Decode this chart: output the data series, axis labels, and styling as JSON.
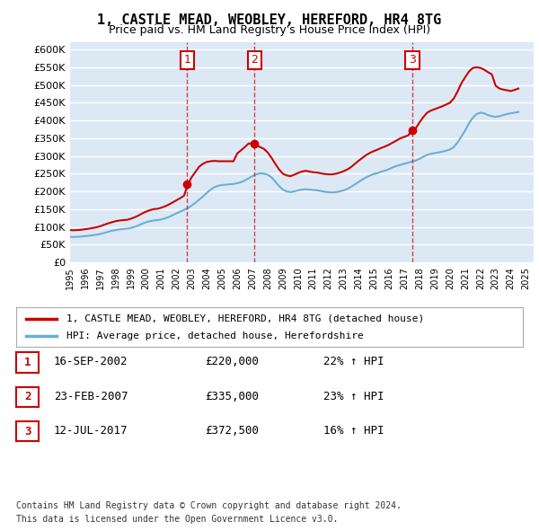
{
  "title": "1, CASTLE MEAD, WEOBLEY, HEREFORD, HR4 8TG",
  "subtitle": "Price paid vs. HM Land Registry's House Price Index (HPI)",
  "ylabel_ticks": [
    "£0",
    "£50K",
    "£100K",
    "£150K",
    "£200K",
    "£250K",
    "£300K",
    "£350K",
    "£400K",
    "£450K",
    "£500K",
    "£550K",
    "£600K"
  ],
  "ytick_values": [
    0,
    50000,
    100000,
    150000,
    200000,
    250000,
    300000,
    350000,
    400000,
    450000,
    500000,
    550000,
    600000
  ],
  "ylim": [
    0,
    620000
  ],
  "xlim_start": 1995.0,
  "xlim_end": 2025.5,
  "sale_dates": [
    2002.71,
    2007.14,
    2017.53
  ],
  "sale_prices": [
    220000,
    335000,
    372500
  ],
  "sale_labels": [
    "1",
    "2",
    "3"
  ],
  "hpi_line_color": "#6baed6",
  "price_line_color": "#cc0000",
  "dashed_line_color": "#cc0000",
  "background_color": "#dce9f5",
  "plot_bg_color": "#dce9f5",
  "grid_color": "#ffffff",
  "legend_label_price": "1, CASTLE MEAD, WEOBLEY, HEREFORD, HR4 8TG (detached house)",
  "legend_label_hpi": "HPI: Average price, detached house, Herefordshire",
  "table_rows": [
    {
      "num": "1",
      "date": "16-SEP-2002",
      "price": "£220,000",
      "hpi": "22% ↑ HPI"
    },
    {
      "num": "2",
      "date": "23-FEB-2007",
      "price": "£335,000",
      "hpi": "23% ↑ HPI"
    },
    {
      "num": "3",
      "date": "12-JUL-2017",
      "price": "£372,500",
      "hpi": "16% ↑ HPI"
    }
  ],
  "footnote1": "Contains HM Land Registry data © Crown copyright and database right 2024.",
  "footnote2": "This data is licensed under the Open Government Licence v3.0.",
  "hpi_data_x": [
    1995.0,
    1995.25,
    1995.5,
    1995.75,
    1996.0,
    1996.25,
    1996.5,
    1996.75,
    1997.0,
    1997.25,
    1997.5,
    1997.75,
    1998.0,
    1998.25,
    1998.5,
    1998.75,
    1999.0,
    1999.25,
    1999.5,
    1999.75,
    2000.0,
    2000.25,
    2000.5,
    2000.75,
    2001.0,
    2001.25,
    2001.5,
    2001.75,
    2002.0,
    2002.25,
    2002.5,
    2002.75,
    2003.0,
    2003.25,
    2003.5,
    2003.75,
    2004.0,
    2004.25,
    2004.5,
    2004.75,
    2005.0,
    2005.25,
    2005.5,
    2005.75,
    2006.0,
    2006.25,
    2006.5,
    2006.75,
    2007.0,
    2007.25,
    2007.5,
    2007.75,
    2008.0,
    2008.25,
    2008.5,
    2008.75,
    2009.0,
    2009.25,
    2009.5,
    2009.75,
    2010.0,
    2010.25,
    2010.5,
    2010.75,
    2011.0,
    2011.25,
    2011.5,
    2011.75,
    2012.0,
    2012.25,
    2012.5,
    2012.75,
    2013.0,
    2013.25,
    2013.5,
    2013.75,
    2014.0,
    2014.25,
    2014.5,
    2014.75,
    2015.0,
    2015.25,
    2015.5,
    2015.75,
    2016.0,
    2016.25,
    2016.5,
    2016.75,
    2017.0,
    2017.25,
    2017.5,
    2017.75,
    2018.0,
    2018.25,
    2018.5,
    2018.75,
    2019.0,
    2019.25,
    2019.5,
    2019.75,
    2020.0,
    2020.25,
    2020.5,
    2020.75,
    2021.0,
    2021.25,
    2021.5,
    2021.75,
    2022.0,
    2022.25,
    2022.5,
    2022.75,
    2023.0,
    2023.25,
    2023.5,
    2023.75,
    2024.0,
    2024.25,
    2024.5
  ],
  "hpi_data_y": [
    72000,
    71500,
    72000,
    73000,
    74000,
    75000,
    76500,
    78000,
    80000,
    83000,
    86000,
    89000,
    91000,
    93000,
    94000,
    95000,
    97000,
    100000,
    104000,
    109000,
    113000,
    116000,
    118000,
    119000,
    121000,
    124000,
    128000,
    133000,
    138000,
    143000,
    148000,
    153000,
    160000,
    168000,
    177000,
    186000,
    196000,
    205000,
    212000,
    216000,
    218000,
    219000,
    220000,
    221000,
    223000,
    226000,
    231000,
    237000,
    243000,
    248000,
    251000,
    250000,
    247000,
    240000,
    228000,
    215000,
    205000,
    200000,
    198000,
    200000,
    203000,
    205000,
    206000,
    205000,
    204000,
    203000,
    201000,
    199000,
    198000,
    197000,
    198000,
    200000,
    203000,
    207000,
    213000,
    220000,
    227000,
    234000,
    240000,
    245000,
    249000,
    252000,
    256000,
    259000,
    263000,
    268000,
    272000,
    275000,
    278000,
    281000,
    284000,
    287000,
    292000,
    298000,
    303000,
    306000,
    308000,
    310000,
    312000,
    315000,
    318000,
    325000,
    338000,
    355000,
    372000,
    392000,
    408000,
    418000,
    422000,
    420000,
    415000,
    412000,
    410000,
    412000,
    415000,
    418000,
    420000,
    422000,
    424000
  ],
  "price_data_x": [
    1995.0,
    1995.25,
    1995.5,
    1995.75,
    1996.0,
    1996.25,
    1996.5,
    1996.75,
    1997.0,
    1997.25,
    1997.5,
    1997.75,
    1998.0,
    1998.25,
    1998.5,
    1998.75,
    1999.0,
    1999.25,
    1999.5,
    1999.75,
    2000.0,
    2000.25,
    2000.5,
    2000.75,
    2001.0,
    2001.25,
    2001.5,
    2001.75,
    2002.0,
    2002.25,
    2002.5,
    2002.75,
    2003.0,
    2003.25,
    2003.5,
    2003.75,
    2004.0,
    2004.25,
    2004.5,
    2004.75,
    2005.0,
    2005.25,
    2005.5,
    2005.75,
    2006.0,
    2006.25,
    2006.5,
    2006.75,
    2007.0,
    2007.25,
    2007.5,
    2007.75,
    2008.0,
    2008.25,
    2008.5,
    2008.75,
    2009.0,
    2009.25,
    2009.5,
    2009.75,
    2010.0,
    2010.25,
    2010.5,
    2010.75,
    2011.0,
    2011.25,
    2011.5,
    2011.75,
    2012.0,
    2012.25,
    2012.5,
    2012.75,
    2013.0,
    2013.25,
    2013.5,
    2013.75,
    2014.0,
    2014.25,
    2014.5,
    2014.75,
    2015.0,
    2015.25,
    2015.5,
    2015.75,
    2016.0,
    2016.25,
    2016.5,
    2016.75,
    2017.0,
    2017.25,
    2017.5,
    2017.75,
    2018.0,
    2018.25,
    2018.5,
    2018.75,
    2019.0,
    2019.25,
    2019.5,
    2019.75,
    2020.0,
    2020.25,
    2020.5,
    2020.75,
    2021.0,
    2021.25,
    2021.5,
    2021.75,
    2022.0,
    2022.25,
    2022.5,
    2022.75,
    2023.0,
    2023.25,
    2023.5,
    2023.75,
    2024.0,
    2024.25,
    2024.5
  ],
  "price_data_y": [
    91000,
    90500,
    91000,
    92000,
    93500,
    95000,
    97000,
    99000,
    102000,
    106000,
    110000,
    113000,
    116000,
    118000,
    119000,
    120000,
    123000,
    127000,
    132000,
    138000,
    143000,
    147000,
    150000,
    151000,
    154000,
    158000,
    163000,
    169000,
    175000,
    181000,
    188000,
    220000,
    240000,
    255000,
    270000,
    278000,
    283000,
    285000,
    286000,
    285000,
    285000,
    285000,
    285000,
    285000,
    307000,
    316000,
    325000,
    335000,
    335000,
    330000,
    325000,
    320000,
    310000,
    295000,
    278000,
    262000,
    250000,
    245000,
    243000,
    247000,
    252000,
    256000,
    258000,
    256000,
    254000,
    253000,
    251000,
    249000,
    248000,
    248000,
    250000,
    253000,
    257000,
    262000,
    269000,
    278000,
    287000,
    295000,
    303000,
    309000,
    314000,
    318000,
    323000,
    327000,
    332000,
    338000,
    344000,
    350000,
    354000,
    358000,
    372500,
    378000,
    395000,
    410000,
    422000,
    428000,
    432000,
    436000,
    440000,
    445000,
    450000,
    462000,
    482000,
    505000,
    522000,
    538000,
    548000,
    550000,
    548000,
    543000,
    536000,
    530000,
    498000,
    490000,
    487000,
    485000,
    483000,
    486000,
    490000
  ]
}
